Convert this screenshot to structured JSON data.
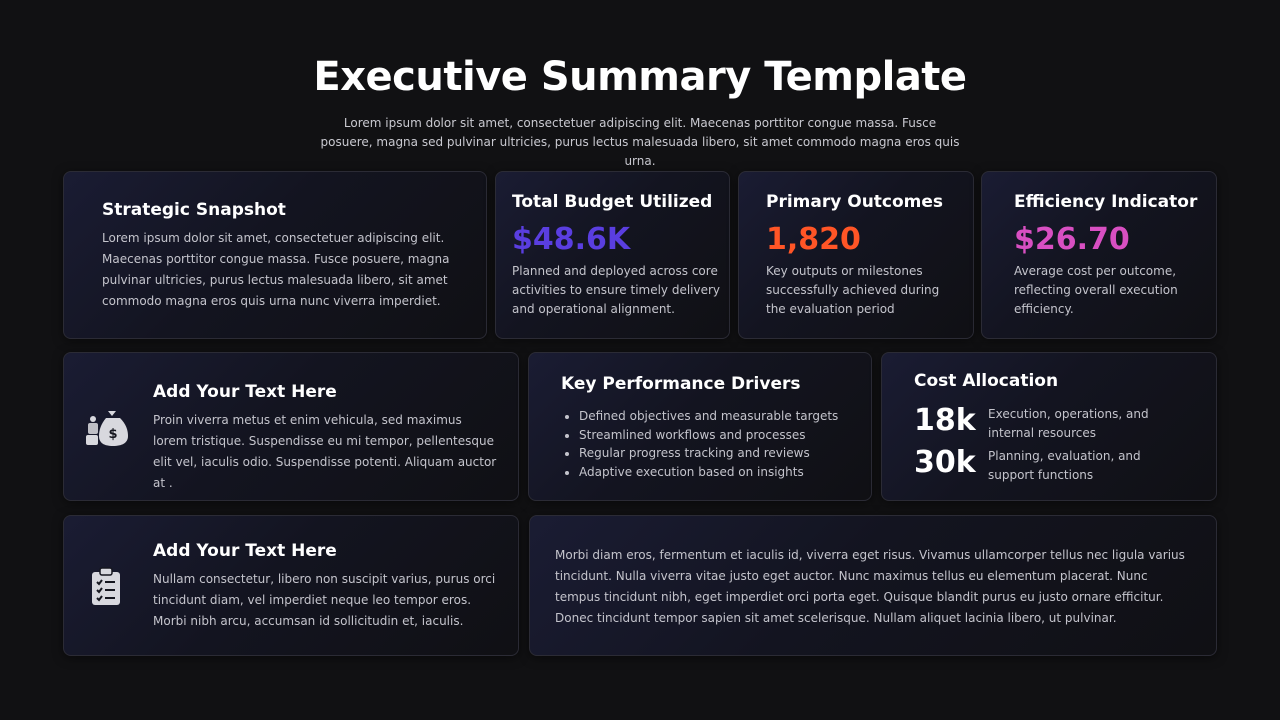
{
  "header": {
    "title": "Executive Summary Template",
    "subtitle": "Lorem ipsum dolor sit amet, consectetuer adipiscing elit. Maecenas porttitor congue massa. Fusce posuere, magna sed pulvinar ultricies, purus lectus malesuada libero, sit amet commodo magna eros quis urna."
  },
  "snapshot": {
    "title": "Strategic Snapshot",
    "text": "Lorem ipsum dolor sit amet, consectetuer adipiscing elit. Maecenas porttitor congue massa. Fusce posuere, magna pulvinar ultricies, purus lectus malesuada libero, sit amet commodo magna eros quis urna nunc viverra imperdiet."
  },
  "metrics": [
    {
      "title": "Total Budget Utilized",
      "value": "$48.6K",
      "text": "Planned and deployed across core activities to ensure timely delivery and operational alignment."
    },
    {
      "title": "Primary Outcomes",
      "value": "1,820",
      "text": "Key outputs or milestones successfully achieved during the evaluation period"
    },
    {
      "title": "Efficiency Indicator",
      "value": "$26.70",
      "text": "Average cost per outcome, reflecting overall execution efficiency."
    }
  ],
  "text_cards": [
    {
      "title": "Add Your Text Here",
      "text": "Proin viverra metus et enim vehicula, sed maximus lorem tristique. Suspendisse eu mi tempor, pellentesque elit vel, iaculis odio. Suspendisse potenti. Aliquam auctor at ."
    },
    {
      "title": "Add Your Text Here",
      "text": "Nullam consectetur, libero non suscipit varius, purus orci tincidunt diam, vel imperdiet neque leo tempor eros. Morbi nibh arcu, accumsan id sollicitudin et, iaculis."
    }
  ],
  "drivers": {
    "title": "Key Performance Drivers",
    "items": [
      "Defined objectives and measurable targets",
      "Streamlined workflows and processes",
      "Regular progress tracking and reviews",
      "Adaptive execution based on insights"
    ]
  },
  "allocation": {
    "title": "Cost Allocation",
    "rows": [
      {
        "value": "18k",
        "text": "Execution, operations, and internal resources"
      },
      {
        "value": "30k",
        "text": "Planning, evaluation, and support functions"
      }
    ]
  },
  "note": "Morbi diam eros, fermentum et iaculis id, viverra eget risus. Vivamus ullamcorper tellus nec ligula varius tincidunt. Nulla viverra vitae justo eget auctor. Nunc maximus tellus eu elementum placerat. Nunc tempus tincidunt nibh, eget imperdiet orci porta eget. Quisque blandit purus eu justo ornare efficitur. Donec tincidunt tempor sapien sit amet scelerisque. Nullam aliquet lacinia libero, ut pulvinar."
}
